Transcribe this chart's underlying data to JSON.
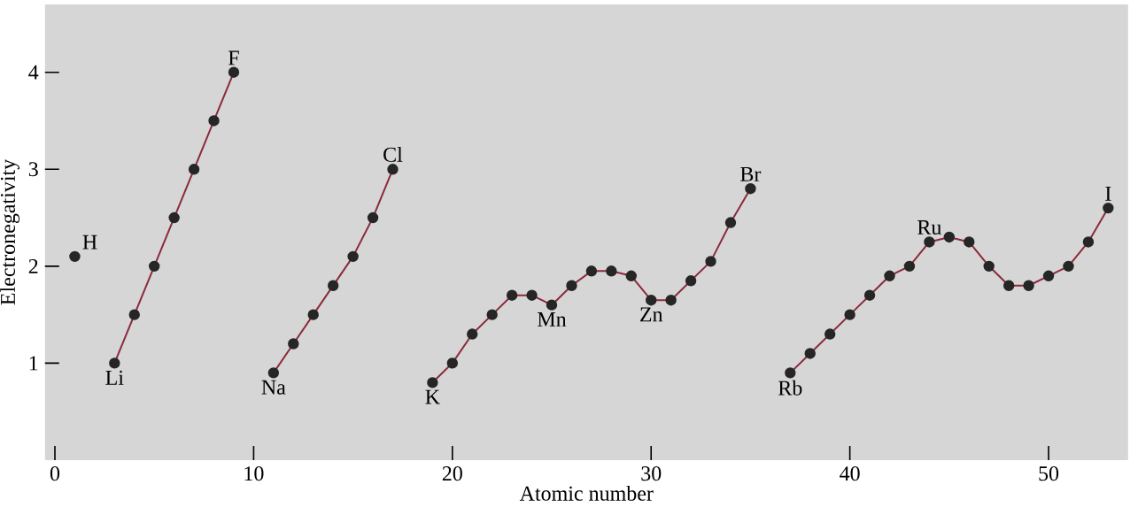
{
  "chart_data": {
    "type": "line",
    "xlabel": "Atomic number",
    "ylabel": "Electronegativity",
    "xlim": [
      -0.5,
      54
    ],
    "ylim": [
      0,
      4.7
    ],
    "xticks": [
      0,
      10,
      20,
      30,
      40,
      50
    ],
    "yticks": [
      1,
      2,
      3,
      4
    ],
    "grid": false,
    "marker": "circle",
    "line_style": "solid",
    "series": [
      {
        "type": "scatter",
        "color": "#262626",
        "x": [
          1
        ],
        "values": [
          2.1
        ]
      },
      {
        "color": "#8b2a3a",
        "x": [
          3,
          4,
          5,
          6,
          7,
          8,
          9
        ],
        "values": [
          1.0,
          1.5,
          2.0,
          2.5,
          3.0,
          3.5,
          4.0
        ]
      },
      {
        "color": "#8b2a3a",
        "x": [
          11,
          12,
          13,
          14,
          15,
          16,
          17
        ],
        "values": [
          0.9,
          1.2,
          1.5,
          1.8,
          2.1,
          2.5,
          3.0
        ]
      },
      {
        "color": "#8b2a3a",
        "x": [
          19,
          20,
          21,
          22,
          23,
          24,
          25,
          26,
          27,
          28,
          29,
          30,
          31,
          32,
          33,
          34,
          35
        ],
        "values": [
          0.8,
          1.0,
          1.3,
          1.5,
          1.7,
          1.7,
          1.6,
          1.8,
          1.95,
          1.95,
          1.9,
          1.65,
          1.65,
          1.85,
          2.05,
          2.45,
          2.8
        ]
      },
      {
        "color": "#8b2a3a",
        "x": [
          37,
          38,
          39,
          40,
          41,
          42,
          43,
          44,
          45,
          46,
          47,
          48,
          49,
          50,
          51,
          52,
          53
        ],
        "values": [
          0.9,
          1.1,
          1.3,
          1.5,
          1.7,
          1.9,
          2.0,
          2.25,
          2.3,
          2.25,
          2.0,
          1.8,
          1.8,
          1.9,
          2.0,
          2.25,
          2.6
        ]
      }
    ],
    "annotations": [
      {
        "text": "H",
        "x": 1,
        "y": 2.1
      },
      {
        "text": "Li",
        "x": 3,
        "y": 1.0
      },
      {
        "text": "F",
        "x": 9,
        "y": 4.0
      },
      {
        "text": "Na",
        "x": 11,
        "y": 0.9
      },
      {
        "text": "Cl",
        "x": 17,
        "y": 3.0
      },
      {
        "text": "K",
        "x": 19,
        "y": 0.8
      },
      {
        "text": "Mn",
        "x": 25,
        "y": 1.6
      },
      {
        "text": "Zn",
        "x": 30,
        "y": 1.65
      },
      {
        "text": "Br",
        "x": 35,
        "y": 2.8
      },
      {
        "text": "Rb",
        "x": 37,
        "y": 0.9
      },
      {
        "text": "Ru",
        "x": 44,
        "y": 2.25
      },
      {
        "text": "I",
        "x": 53,
        "y": 2.6
      }
    ]
  }
}
